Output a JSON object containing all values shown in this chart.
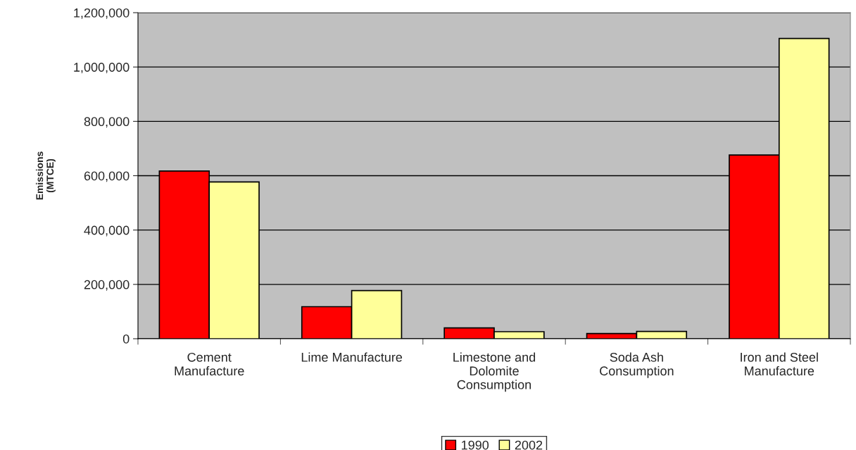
{
  "chart_data": {
    "type": "bar",
    "ylabel": "Emissions\n(MTCE)",
    "categories": [
      "Cement\nManufacture",
      "Lime Manufacture",
      "Limestone and\nDolomite\nConsumption",
      "Soda Ash\nConsumption",
      "Iron and Steel\nManufacture"
    ],
    "series": [
      {
        "name": "1990",
        "color": "#ff0000",
        "values": [
          617000,
          118000,
          40000,
          19000,
          676000
        ]
      },
      {
        "name": "2002",
        "color": "#ffff99",
        "values": [
          577000,
          177000,
          26000,
          27000,
          1105000
        ]
      }
    ],
    "ylim": [
      0,
      1200000
    ],
    "yticks": [
      {
        "value": 0,
        "label": "0"
      },
      {
        "value": 200000,
        "label": "200,000"
      },
      {
        "value": 400000,
        "label": "400,000"
      },
      {
        "value": 600000,
        "label": "600,000"
      },
      {
        "value": 800000,
        "label": "800,000"
      },
      {
        "value": 1000000,
        "label": "1,000,000"
      },
      {
        "value": 1200000,
        "label": "1,200,000"
      }
    ],
    "grid": "y",
    "legend": "bottom"
  }
}
